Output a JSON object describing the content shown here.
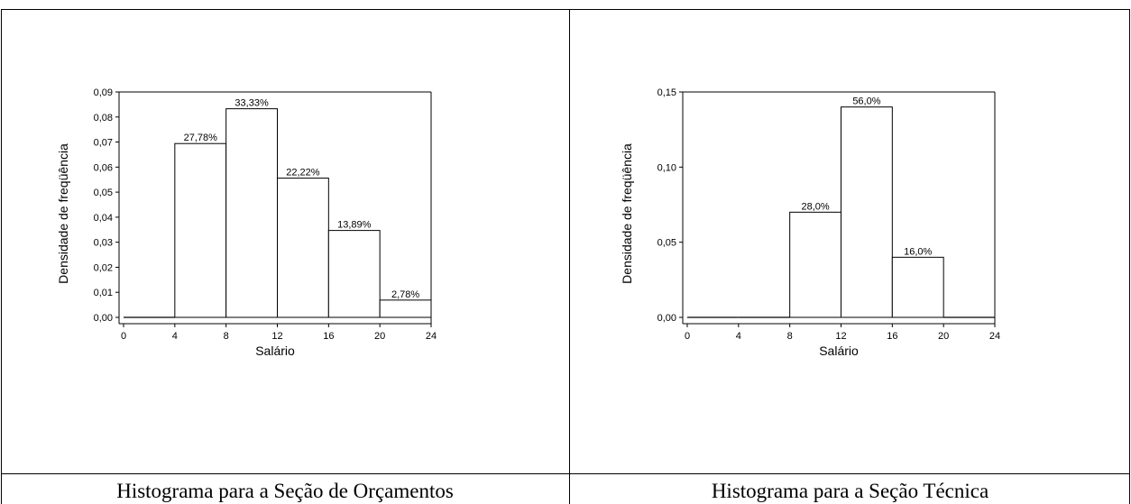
{
  "captions": {
    "left": "Histograma para a Seção de Orçamentos",
    "right": "Histograma para a Seção Técnica"
  },
  "chart_data": [
    {
      "type": "bar",
      "title": "",
      "xlabel": "Salário",
      "ylabel": "Densidade de freqüência",
      "xlim": [
        0,
        24
      ],
      "ylim": [
        0,
        0.09
      ],
      "x_ticks": [
        0,
        4,
        8,
        12,
        16,
        20,
        24
      ],
      "y_ticks": [
        0.0,
        0.01,
        0.02,
        0.03,
        0.04,
        0.05,
        0.06,
        0.07,
        0.08,
        0.09
      ],
      "y_tick_labels": [
        "0,00",
        "0,01",
        "0,02",
        "0,03",
        "0,04",
        "0,05",
        "0,06",
        "0,07",
        "0,08",
        "0,09"
      ],
      "bins": [
        [
          0,
          4
        ],
        [
          4,
          8
        ],
        [
          8,
          12
        ],
        [
          12,
          16
        ],
        [
          16,
          20
        ],
        [
          20,
          24
        ]
      ],
      "values": [
        0,
        0.0694,
        0.0833,
        0.0556,
        0.0347,
        0.0069
      ],
      "bar_labels": [
        "",
        "27,78%",
        "33,33%",
        "22,22%",
        "13,89%",
        "2,78%"
      ],
      "grid": false,
      "legend": "none"
    },
    {
      "type": "bar",
      "title": "",
      "xlabel": "Salário",
      "ylabel": "Densidade de freqüência",
      "xlim": [
        0,
        24
      ],
      "ylim": [
        0,
        0.15
      ],
      "x_ticks": [
        0,
        4,
        8,
        12,
        16,
        20,
        24
      ],
      "y_ticks": [
        0.0,
        0.05,
        0.1,
        0.15
      ],
      "y_tick_labels": [
        "0,00",
        "0,05",
        "0,10",
        "0,15"
      ],
      "bins": [
        [
          0,
          4
        ],
        [
          4,
          8
        ],
        [
          8,
          12
        ],
        [
          12,
          16
        ],
        [
          16,
          20
        ],
        [
          20,
          24
        ]
      ],
      "values": [
        0,
        0,
        0.07,
        0.14,
        0.04,
        0
      ],
      "bar_labels": [
        "",
        "",
        "28,0%",
        "56,0%",
        "16,0%",
        ""
      ],
      "grid": false,
      "legend": "none"
    }
  ]
}
